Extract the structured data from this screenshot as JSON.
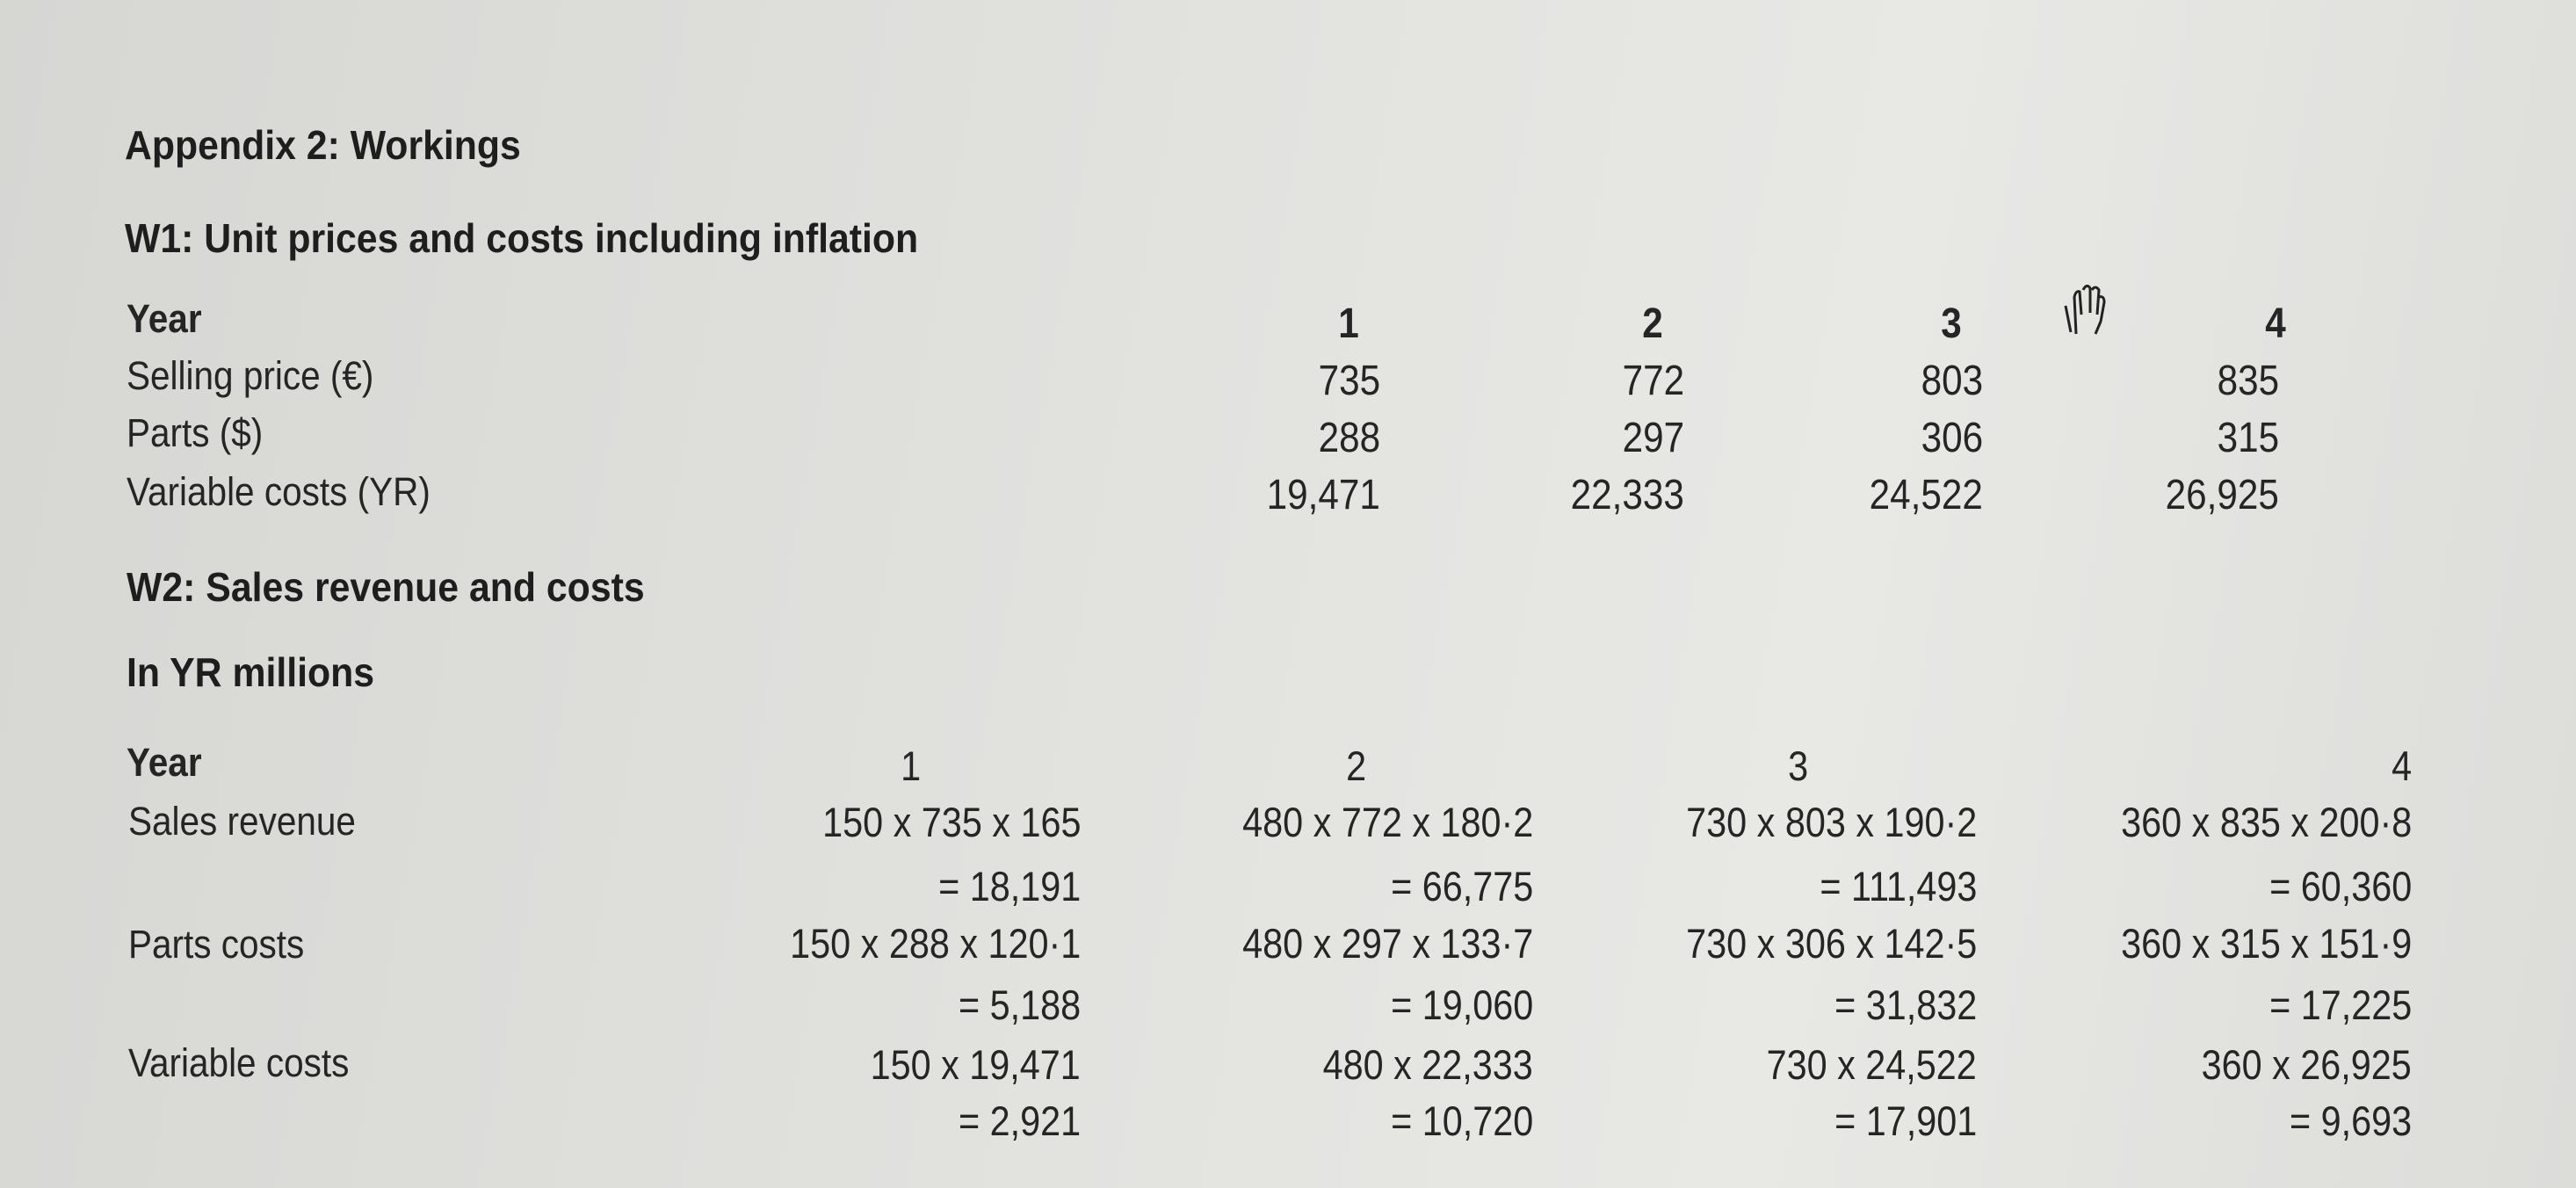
{
  "title": "Appendix 2: Workings",
  "w1": {
    "heading": "W1: Unit prices and costs including inflation",
    "year_label": "Year",
    "years": [
      "1",
      "2",
      "3",
      "4"
    ],
    "rows": [
      {
        "label": "Selling price (€)",
        "values": [
          "735",
          "772",
          "803",
          "835"
        ]
      },
      {
        "label": "Parts ($)",
        "values": [
          "288",
          "297",
          "306",
          "315"
        ]
      },
      {
        "label": "Variable costs (YR)",
        "values": [
          "19,471",
          "22,333",
          "24,522",
          "26,925"
        ]
      }
    ]
  },
  "w2": {
    "heading": "W2: Sales revenue and costs",
    "unit": "In YR millions",
    "year_label": "Year",
    "years": [
      "1",
      "2",
      "3",
      "4"
    ],
    "rows": [
      {
        "label": "Sales revenue",
        "formulas": [
          "150 x 735 x 165",
          "480 x 772 x 180·2",
          "730 x 803 x 190·2",
          "360 x 835 x 200·8"
        ],
        "results": [
          "= 18,191",
          "= 66,775",
          "= 111,493",
          "= 60,360"
        ]
      },
      {
        "label": "Parts costs",
        "formulas": [
          "150 x 288 x 120·1",
          "480 x 297 x 133·7",
          "730 x 306 x 142·5",
          "360 x 315 x 151·9"
        ],
        "results": [
          "= 5,188",
          "= 19,060",
          "= 31,832",
          "= 17,225"
        ]
      },
      {
        "label": "Variable costs",
        "formulas": [
          "150 x 19,471",
          "480 x 22,333",
          "730 x 24,522",
          "360 x 26,925"
        ],
        "results": [
          "= 2,921",
          "= 10,720",
          "= 17,901",
          "= 9,693"
        ]
      }
    ]
  },
  "cursor": {
    "icon": "hand-cursor-icon"
  }
}
